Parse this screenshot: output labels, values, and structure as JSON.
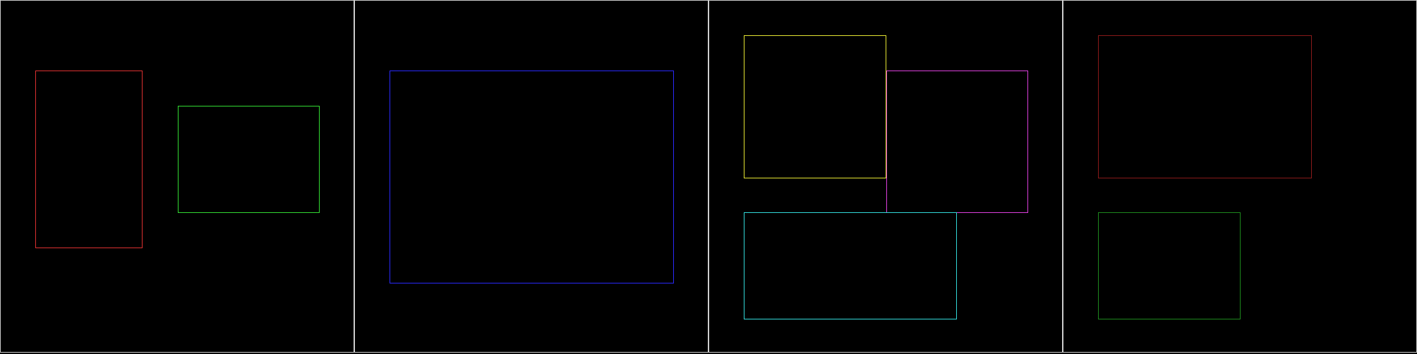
{
  "panels": [
    {
      "boxes": [
        {
          "color": "#e03030"
        },
        {
          "color": "#33dd33"
        }
      ]
    },
    {
      "boxes": [
        {
          "color": "#2a2aff"
        }
      ]
    },
    {
      "boxes": [
        {
          "color": "#e8e832"
        },
        {
          "color": "#e040e0"
        },
        {
          "color": "#33dddd"
        }
      ]
    },
    {
      "boxes": [
        {
          "color": "#8b1a1a"
        },
        {
          "color": "#1e8a1e"
        }
      ]
    }
  ]
}
